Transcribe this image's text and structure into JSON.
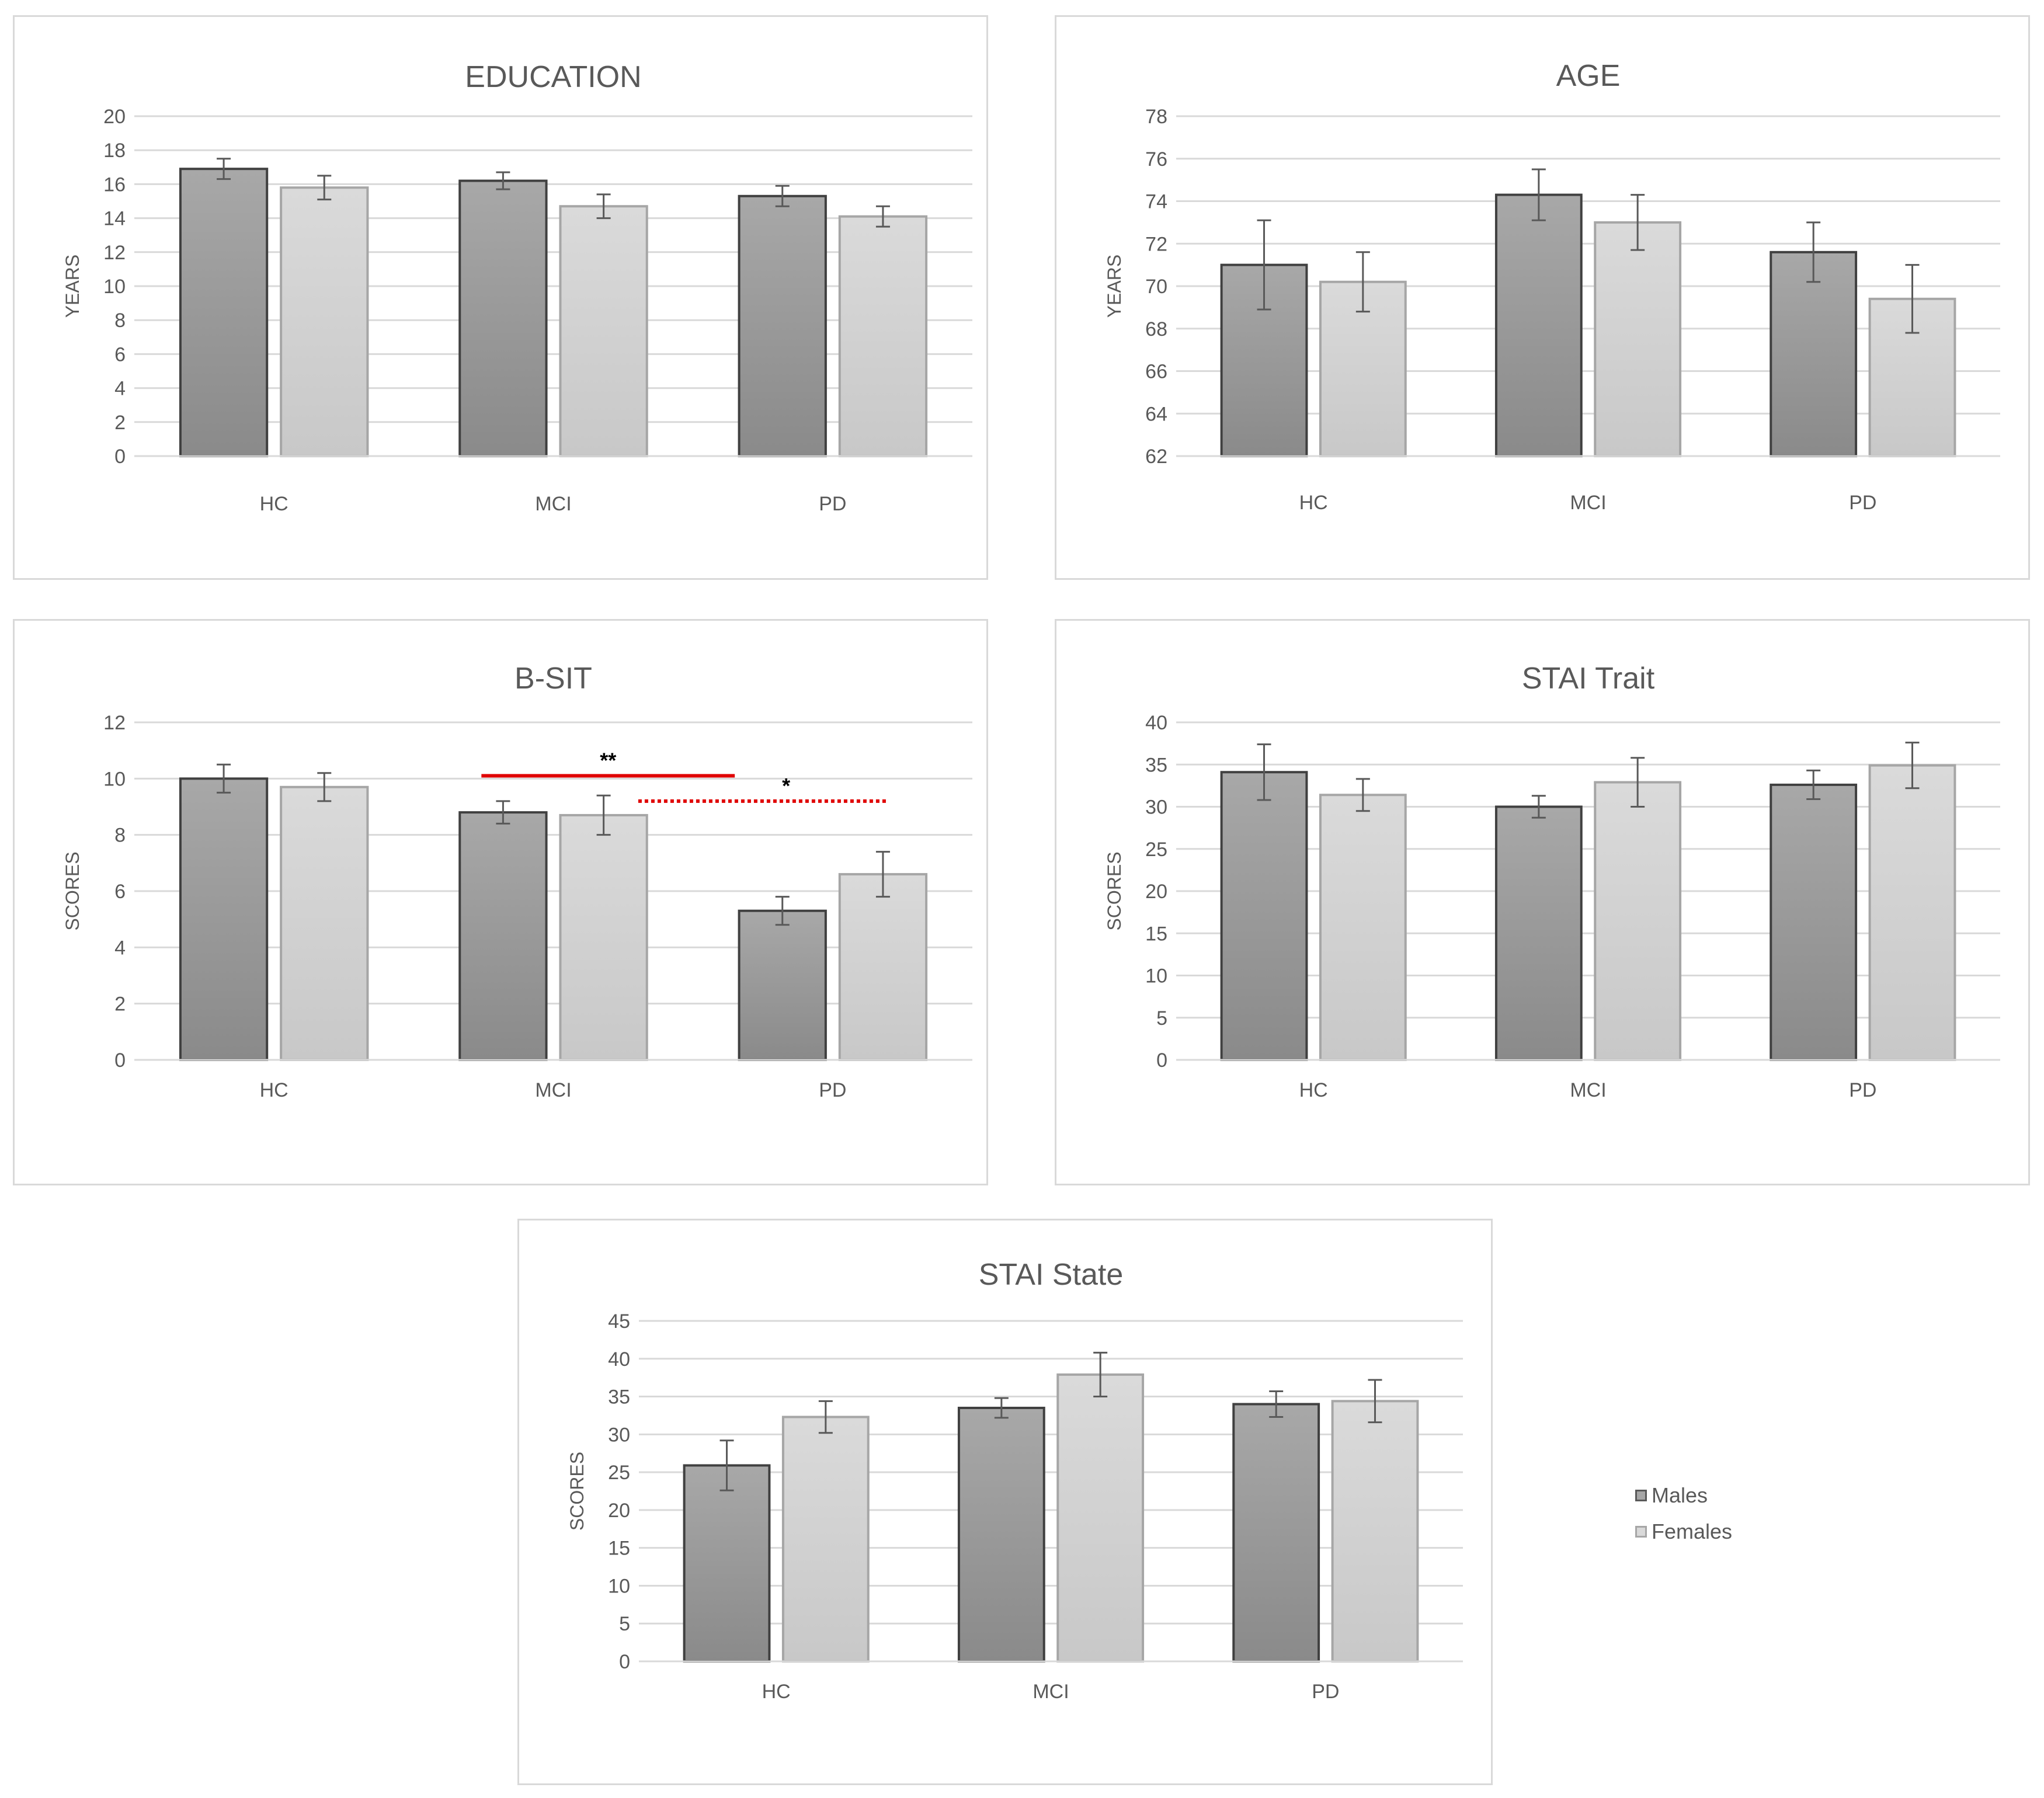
{
  "legend": [
    {
      "label": "Males",
      "color": "#a6a6a6"
    },
    {
      "label": "Females",
      "color": "#d9d9d9"
    }
  ],
  "colors": {
    "males_top": "#a8a8a8",
    "males_bottom": "#8a8a8a",
    "males_stroke": "#404040",
    "females_top": "#dadada",
    "females_bottom": "#c8c8c8",
    "females_stroke": "#a6a6a6",
    "grid": "#d9d9d9",
    "text": "#595959",
    "error_bar": "#595959",
    "significance": "#e00000"
  },
  "chart_data": [
    {
      "type": "bar",
      "title": "EDUCATION",
      "ylabel": "YEARS",
      "categories": [
        "HC",
        "MCI",
        "PD"
      ],
      "ylim": [
        0,
        20
      ],
      "yticks": [
        0,
        2,
        4,
        6,
        8,
        10,
        12,
        14,
        16,
        18,
        20
      ],
      "grid": true,
      "series": [
        {
          "name": "Males",
          "values": [
            16.9,
            16.2,
            15.3
          ],
          "errors": [
            0.6,
            0.5,
            0.6
          ]
        },
        {
          "name": "Females",
          "values": [
            15.8,
            14.7,
            14.1
          ],
          "errors": [
            0.7,
            0.7,
            0.6
          ]
        }
      ]
    },
    {
      "type": "bar",
      "title": "AGE",
      "ylabel": "YEARS",
      "categories": [
        "HC",
        "MCI",
        "PD"
      ],
      "ylim": [
        62,
        78
      ],
      "yticks": [
        62,
        64,
        66,
        68,
        70,
        72,
        74,
        76,
        78
      ],
      "grid": true,
      "series": [
        {
          "name": "Males",
          "values": [
            71.0,
            74.3,
            71.6
          ],
          "errors": [
            2.1,
            1.2,
            1.4
          ]
        },
        {
          "name": "Females",
          "values": [
            70.2,
            73.0,
            69.4
          ],
          "errors": [
            1.4,
            1.3,
            1.6
          ]
        }
      ]
    },
    {
      "type": "bar",
      "title": "B-SIT",
      "ylabel": "SCORES",
      "categories": [
        "HC",
        "MCI",
        "PD"
      ],
      "ylim": [
        0,
        12
      ],
      "yticks": [
        0,
        2,
        4,
        6,
        8,
        10,
        12
      ],
      "grid": true,
      "series": [
        {
          "name": "Males",
          "values": [
            10.0,
            8.8,
            5.3
          ],
          "errors": [
            0.5,
            0.4,
            0.5
          ]
        },
        {
          "name": "Females",
          "values": [
            9.7,
            8.7,
            6.6
          ],
          "errors": [
            0.5,
            0.7,
            0.8
          ]
        }
      ],
      "annotations": [
        {
          "text": "**",
          "style": "solid",
          "y": 10.1,
          "from": "MCI",
          "to": "PD"
        },
        {
          "text": "*",
          "style": "dotted",
          "y": 9.2,
          "from": "MCI",
          "to": "PD"
        }
      ]
    },
    {
      "type": "bar",
      "title": "STAI Trait",
      "ylabel": "SCORES",
      "categories": [
        "HC",
        "MCI",
        "PD"
      ],
      "ylim": [
        0,
        40
      ],
      "yticks": [
        0,
        5,
        10,
        15,
        20,
        25,
        30,
        35,
        40
      ],
      "grid": true,
      "series": [
        {
          "name": "Males",
          "values": [
            34.1,
            30.0,
            32.6
          ],
          "errors": [
            3.3,
            1.3,
            1.7
          ]
        },
        {
          "name": "Females",
          "values": [
            31.4,
            32.9,
            34.9
          ],
          "errors": [
            1.9,
            2.9,
            2.7
          ]
        }
      ]
    },
    {
      "type": "bar",
      "title": "STAI State",
      "ylabel": "SCORES",
      "categories": [
        "HC",
        "MCI",
        "PD"
      ],
      "ylim": [
        0,
        45
      ],
      "yticks": [
        0,
        5,
        10,
        15,
        20,
        25,
        30,
        35,
        40,
        45
      ],
      "grid": true,
      "series": [
        {
          "name": "Males",
          "values": [
            25.9,
            33.5,
            34.0
          ],
          "errors": [
            3.3,
            1.3,
            1.7
          ]
        },
        {
          "name": "Females",
          "values": [
            32.3,
            37.9,
            34.4
          ],
          "errors": [
            2.1,
            2.9,
            2.8
          ]
        }
      ]
    }
  ]
}
